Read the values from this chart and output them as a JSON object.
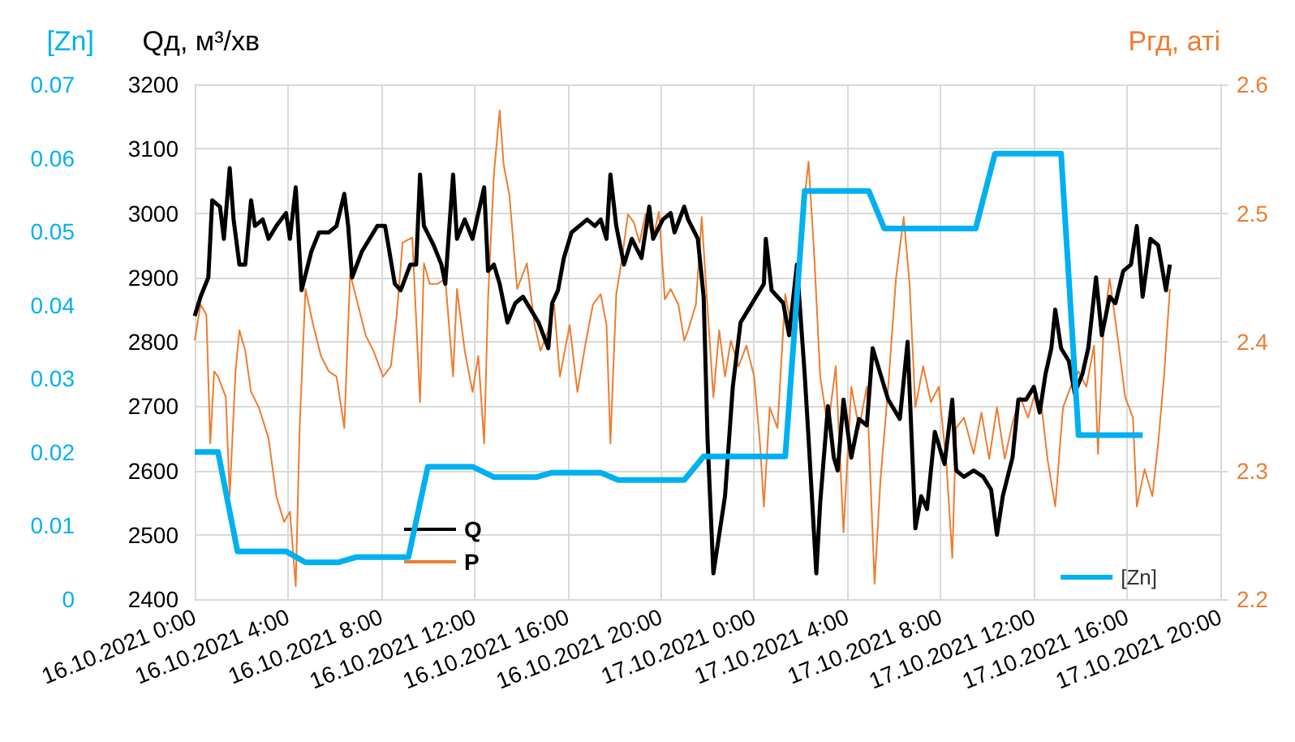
{
  "chart_data": {
    "type": "line",
    "ylabel": "Qд, м³/хв",
    "y2label": "Ргд, аті",
    "y3label": "[Zn]",
    "xlim": [
      "2021-10-16T00:00",
      "2021-10-17T20:00"
    ],
    "xticks": [
      {
        "value": "2021-10-16T00:00",
        "label": "16.10.2021 0:00"
      },
      {
        "value": "2021-10-16T04:00",
        "label": "16.10.2021 4:00"
      },
      {
        "value": "2021-10-16T08:00",
        "label": "16.10.2021 8:00"
      },
      {
        "value": "2021-10-16T12:00",
        "label": "16.10.2021 12:00"
      },
      {
        "value": "2021-10-16T16:00",
        "label": "16.10.2021 16:00"
      },
      {
        "value": "2021-10-16T20:00",
        "label": "16.10.2021 20:00"
      },
      {
        "value": "2021-10-17T00:00",
        "label": "17.10.2021 0:00"
      },
      {
        "value": "2021-10-17T04:00",
        "label": "17.10.2021 4:00"
      },
      {
        "value": "2021-10-17T08:00",
        "label": "17.10.2021 8:00"
      },
      {
        "value": "2021-10-17T12:00",
        "label": "17.10.2021 12:00"
      },
      {
        "value": "2021-10-17T16:00",
        "label": "17.10.2021 16:00"
      },
      {
        "value": "2021-10-17T20:00",
        "label": "17.10.2021 20:00"
      }
    ],
    "ylim": [
      2400,
      3200
    ],
    "yticks": [
      2400,
      2500,
      2600,
      2700,
      2800,
      2900,
      3000,
      3100,
      3200
    ],
    "y2lim": [
      2.2,
      2.6
    ],
    "y2ticks": [
      2.2,
      2.3,
      2.4,
      2.5,
      2.6
    ],
    "y3lim": [
      0,
      0.07
    ],
    "y3ticks": [
      0,
      0.01,
      0.02,
      0.03,
      0.04,
      0.05,
      0.06,
      0.07
    ],
    "grid": true,
    "legend": "bottom",
    "marker": "none",
    "line_style": "solid",
    "series": [
      {
        "name": "Q",
        "color": "#000000",
        "x": [
          "2021-10-16T00:00",
          "2021-10-16T00:15",
          "2021-10-16T00:35",
          "2021-10-16T00:45",
          "2021-10-16T01:05",
          "2021-10-16T01:15",
          "2021-10-16T01:30",
          "2021-10-16T01:40",
          "2021-10-16T01:55",
          "2021-10-16T02:10",
          "2021-10-16T02:25",
          "2021-10-16T02:35",
          "2021-10-16T02:55",
          "2021-10-16T03:10",
          "2021-10-16T03:30",
          "2021-10-16T03:55",
          "2021-10-16T04:05",
          "2021-10-16T04:20",
          "2021-10-16T04:35",
          "2021-10-16T05:00",
          "2021-10-16T05:20",
          "2021-10-16T05:45",
          "2021-10-16T06:05",
          "2021-10-16T06:25",
          "2021-10-16T06:35",
          "2021-10-16T06:45",
          "2021-10-16T07:10",
          "2021-10-16T07:30",
          "2021-10-16T07:50",
          "2021-10-16T08:10",
          "2021-10-16T08:35",
          "2021-10-16T08:50",
          "2021-10-16T09:15",
          "2021-10-16T09:30",
          "2021-10-16T09:40",
          "2021-10-16T09:50",
          "2021-10-16T10:15",
          "2021-10-16T10:35",
          "2021-10-16T10:45",
          "2021-10-16T11:05",
          "2021-10-16T11:15",
          "2021-10-16T11:35",
          "2021-10-16T11:55",
          "2021-10-16T12:25",
          "2021-10-16T12:35",
          "2021-10-16T12:50",
          "2021-10-16T13:05",
          "2021-10-16T13:25",
          "2021-10-16T13:45",
          "2021-10-16T14:05",
          "2021-10-16T14:25",
          "2021-10-16T14:45",
          "2021-10-16T15:10",
          "2021-10-16T15:20",
          "2021-10-16T15:35",
          "2021-10-16T15:50",
          "2021-10-16T16:10",
          "2021-10-16T16:30",
          "2021-10-16T16:50",
          "2021-10-16T17:10",
          "2021-10-16T17:25",
          "2021-10-16T17:40",
          "2021-10-16T17:50",
          "2021-10-16T18:05",
          "2021-10-16T18:25",
          "2021-10-16T18:45",
          "2021-10-16T19:10",
          "2021-10-16T19:30",
          "2021-10-16T19:40",
          "2021-10-16T20:05",
          "2021-10-16T20:25",
          "2021-10-16T20:35",
          "2021-10-16T21:00",
          "2021-10-16T21:10",
          "2021-10-16T21:35",
          "2021-10-16T21:50",
          "2021-10-16T22:00",
          "2021-10-16T22:15",
          "2021-10-16T22:30",
          "2021-10-16T22:45",
          "2021-10-16T23:05",
          "2021-10-16T23:25",
          "2021-10-16T23:45",
          "2021-10-17T00:05",
          "2021-10-17T00:25",
          "2021-10-17T00:30",
          "2021-10-17T00:45",
          "2021-10-17T01:15",
          "2021-10-17T01:30",
          "2021-10-17T01:50",
          "2021-10-17T02:10",
          "2021-10-17T02:20",
          "2021-10-17T02:40",
          "2021-10-17T02:50",
          "2021-10-17T03:10",
          "2021-10-17T03:25",
          "2021-10-17T03:35",
          "2021-10-17T03:50",
          "2021-10-17T04:10",
          "2021-10-17T04:30",
          "2021-10-17T04:50",
          "2021-10-17T05:05",
          "2021-10-17T05:25",
          "2021-10-17T05:45",
          "2021-10-17T06:15",
          "2021-10-17T06:35",
          "2021-10-17T06:55",
          "2021-10-17T07:10",
          "2021-10-17T07:25",
          "2021-10-17T07:45",
          "2021-10-17T08:10",
          "2021-10-17T08:30",
          "2021-10-17T08:40",
          "2021-10-17T09:00",
          "2021-10-17T09:25",
          "2021-10-17T09:50",
          "2021-10-17T10:10",
          "2021-10-17T10:25",
          "2021-10-17T10:40",
          "2021-10-17T11:05",
          "2021-10-17T11:20",
          "2021-10-17T11:40",
          "2021-10-17T12:00",
          "2021-10-17T12:15",
          "2021-10-17T12:30",
          "2021-10-17T12:45",
          "2021-10-17T12:55",
          "2021-10-17T13:10",
          "2021-10-17T13:30",
          "2021-10-17T13:45",
          "2021-10-17T14:05",
          "2021-10-17T14:20",
          "2021-10-17T14:40",
          "2021-10-17T14:55",
          "2021-10-17T15:15",
          "2021-10-17T15:30",
          "2021-10-17T15:50",
          "2021-10-17T16:10",
          "2021-10-17T16:25",
          "2021-10-17T16:40",
          "2021-10-17T17:00",
          "2021-10-17T17:20",
          "2021-10-17T17:40",
          "2021-10-17T17:50"
        ],
        "values": [
          2840,
          2870,
          2900,
          3020,
          3010,
          2960,
          3070,
          2990,
          2920,
          2920,
          3020,
          2980,
          2990,
          2960,
          2980,
          3000,
          2960,
          3040,
          2880,
          2940,
          2970,
          2970,
          2980,
          3030,
          2980,
          2900,
          2940,
          2960,
          2980,
          2980,
          2890,
          2880,
          2920,
          2920,
          3060,
          2980,
          2950,
          2920,
          2890,
          3060,
          2960,
          2990,
          2960,
          3040,
          2910,
          2920,
          2890,
          2830,
          2860,
          2870,
          2850,
          2830,
          2790,
          2860,
          2880,
          2930,
          2970,
          2980,
          2990,
          2980,
          2990,
          2960,
          3060,
          2980,
          2920,
          2960,
          2930,
          3010,
          2960,
          2990,
          3000,
          2970,
          3010,
          2990,
          2960,
          2870,
          2650,
          2440,
          2500,
          2560,
          2730,
          2830,
          2850,
          2870,
          2890,
          2960,
          2880,
          2860,
          2810,
          2920,
          2750,
          2650,
          2440,
          2550,
          2700,
          2620,
          2600,
          2710,
          2620,
          2680,
          2670,
          2790,
          2750,
          2710,
          2680,
          2800,
          2510,
          2560,
          2540,
          2660,
          2610,
          2710,
          2600,
          2590,
          2600,
          2590,
          2570,
          2500,
          2560,
          2620,
          2710,
          2710,
          2730,
          2690,
          2750,
          2790,
          2850,
          2790,
          2770,
          2720,
          2750,
          2790,
          2900,
          2810,
          2870,
          2860,
          2910,
          2920,
          2980,
          2870,
          2960,
          2950,
          2880,
          2920
        ]
      },
      {
        "name": "P",
        "color": "#ed7d31",
        "axis": "y2",
        "x": [
          "2021-10-16T00:00",
          "2021-10-16T00:15",
          "2021-10-16T00:30",
          "2021-10-16T00:40",
          "2021-10-16T00:50",
          "2021-10-16T01:00",
          "2021-10-16T01:20",
          "2021-10-16T01:30",
          "2021-10-16T01:45",
          "2021-10-16T01:55",
          "2021-10-16T02:10",
          "2021-10-16T02:25",
          "2021-10-16T02:45",
          "2021-10-16T03:10",
          "2021-10-16T03:30",
          "2021-10-16T03:50",
          "2021-10-16T04:05",
          "2021-10-16T04:20",
          "2021-10-16T04:30",
          "2021-10-16T04:45",
          "2021-10-16T05:05",
          "2021-10-16T05:25",
          "2021-10-16T05:45",
          "2021-10-16T06:05",
          "2021-10-16T06:25",
          "2021-10-16T06:40",
          "2021-10-16T07:00",
          "2021-10-16T07:20",
          "2021-10-16T07:40",
          "2021-10-16T08:05",
          "2021-10-16T08:25",
          "2021-10-16T08:40",
          "2021-10-16T08:55",
          "2021-10-16T09:20",
          "2021-10-16T09:40",
          "2021-10-16T09:50",
          "2021-10-16T10:05",
          "2021-10-16T10:25",
          "2021-10-16T10:45",
          "2021-10-16T11:05",
          "2021-10-16T11:15",
          "2021-10-16T11:35",
          "2021-10-16T11:55",
          "2021-10-16T12:10",
          "2021-10-16T12:25",
          "2021-10-16T12:35",
          "2021-10-16T12:50",
          "2021-10-16T13:05",
          "2021-10-16T13:15",
          "2021-10-16T13:30",
          "2021-10-16T13:50",
          "2021-10-16T14:15",
          "2021-10-16T14:35",
          "2021-10-16T14:50",
          "2021-10-16T15:10",
          "2021-10-16T15:25",
          "2021-10-16T15:40",
          "2021-10-16T16:05",
          "2021-10-16T16:25",
          "2021-10-16T16:45",
          "2021-10-16T17:05",
          "2021-10-16T17:25",
          "2021-10-16T17:40",
          "2021-10-16T17:50",
          "2021-10-16T18:05",
          "2021-10-16T18:20",
          "2021-10-16T18:35",
          "2021-10-16T18:50",
          "2021-10-16T19:05",
          "2021-10-16T19:20",
          "2021-10-16T19:40",
          "2021-10-16T19:55",
          "2021-10-16T20:10",
          "2021-10-16T20:25",
          "2021-10-16T20:45",
          "2021-10-16T21:00",
          "2021-10-16T21:10",
          "2021-10-16T21:30",
          "2021-10-16T21:45",
          "2021-10-16T21:55",
          "2021-10-16T22:15",
          "2021-10-16T22:30",
          "2021-10-16T22:45",
          "2021-10-16T23:00",
          "2021-10-16T23:20",
          "2021-10-16T23:40",
          "2021-10-17T00:00",
          "2021-10-17T00:15",
          "2021-10-17T00:25",
          "2021-10-17T00:40",
          "2021-10-17T01:00",
          "2021-10-17T01:20",
          "2021-10-17T01:40",
          "2021-10-17T02:00",
          "2021-10-17T02:20",
          "2021-10-17T02:35",
          "2021-10-17T02:50",
          "2021-10-17T03:10",
          "2021-10-17T03:30",
          "2021-10-17T03:50",
          "2021-10-17T04:10",
          "2021-10-17T04:30",
          "2021-10-17T04:50",
          "2021-10-17T05:10",
          "2021-10-17T05:25",
          "2021-10-17T05:45",
          "2021-10-17T06:05",
          "2021-10-17T06:25",
          "2021-10-17T06:40",
          "2021-10-17T06:55",
          "2021-10-17T07:15",
          "2021-10-17T07:35",
          "2021-10-17T07:55",
          "2021-10-17T08:15",
          "2021-10-17T08:30",
          "2021-10-17T08:40",
          "2021-10-17T09:00",
          "2021-10-17T09:25",
          "2021-10-17T09:45",
          "2021-10-17T10:05",
          "2021-10-17T10:25",
          "2021-10-17T10:45",
          "2021-10-17T11:05",
          "2021-10-17T11:25",
          "2021-10-17T11:45",
          "2021-10-17T12:00",
          "2021-10-17T12:20",
          "2021-10-17T12:35",
          "2021-10-17T12:55",
          "2021-10-17T13:15",
          "2021-10-17T13:35",
          "2021-10-17T13:55",
          "2021-10-17T14:15",
          "2021-10-17T14:35",
          "2021-10-17T14:45",
          "2021-10-17T15:00",
          "2021-10-17T15:15",
          "2021-10-17T15:35",
          "2021-10-17T15:55",
          "2021-10-17T16:15",
          "2021-10-17T16:25",
          "2021-10-17T16:45",
          "2021-10-17T17:05",
          "2021-10-17T17:20",
          "2021-10-17T17:35",
          "2021-10-17T17:50"
        ],
        "values": [
          2.401,
          2.429,
          2.421,
          2.321,
          2.377,
          2.373,
          2.357,
          2.28,
          2.377,
          2.409,
          2.393,
          2.361,
          2.349,
          2.325,
          2.28,
          2.26,
          2.268,
          2.21,
          2.333,
          2.441,
          2.413,
          2.389,
          2.377,
          2.373,
          2.333,
          2.453,
          2.429,
          2.405,
          2.393,
          2.373,
          2.381,
          2.421,
          2.477,
          2.481,
          2.353,
          2.461,
          2.445,
          2.445,
          2.449,
          2.373,
          2.441,
          2.393,
          2.361,
          2.389,
          2.321,
          2.433,
          2.53,
          2.58,
          2.538,
          2.514,
          2.441,
          2.461,
          2.413,
          2.393,
          2.409,
          2.429,
          2.373,
          2.413,
          2.361,
          2.397,
          2.429,
          2.437,
          2.413,
          2.321,
          2.437,
          2.465,
          2.499,
          2.493,
          2.477,
          2.499,
          2.481,
          2.501,
          2.433,
          2.441,
          2.429,
          2.401,
          2.409,
          2.429,
          2.497,
          2.449,
          2.357,
          2.409,
          2.373,
          2.401,
          2.381,
          2.397,
          2.373,
          2.321,
          2.272,
          2.349,
          2.333,
          2.437,
          2.405,
          2.485,
          2.54,
          2.465,
          2.373,
          2.333,
          2.381,
          2.252,
          2.365,
          2.333,
          2.365,
          2.212,
          2.292,
          2.365,
          2.449,
          2.497,
          2.445,
          2.349,
          2.381,
          2.353,
          2.365,
          2.305,
          2.232,
          2.333,
          2.341,
          2.313,
          2.345,
          2.309,
          2.349,
          2.309,
          2.337,
          2.357,
          2.341,
          2.357,
          2.349,
          2.309,
          2.272,
          2.349,
          2.365,
          2.377,
          2.365,
          2.397,
          2.313,
          2.413,
          2.449,
          2.405,
          2.357,
          2.341,
          2.272,
          2.301,
          2.28,
          2.321,
          2.373,
          2.441
        ]
      },
      {
        "name": "[Zn]",
        "color": "#00b0f0",
        "axis": "y3",
        "x": [
          "2021-10-16T00:00",
          "2021-10-16T01:00",
          "2021-10-16T01:50",
          "2021-10-16T03:55",
          "2021-10-16T04:45",
          "2021-10-16T06:10",
          "2021-10-16T06:55",
          "2021-10-16T09:10",
          "2021-10-16T10:00",
          "2021-10-16T11:55",
          "2021-10-16T12:50",
          "2021-10-16T14:40",
          "2021-10-16T15:20",
          "2021-10-16T17:25",
          "2021-10-16T18:10",
          "2021-10-16T21:00",
          "2021-10-16T21:50",
          "2021-10-17T01:20",
          "2021-10-17T02:10",
          "2021-10-17T04:55",
          "2021-10-17T05:35",
          "2021-10-17T09:30",
          "2021-10-17T10:20",
          "2021-10-17T13:10",
          "2021-10-17T13:55",
          "2021-10-17T16:40"
        ],
        "values": [
          0.02,
          0.02,
          0.0065,
          0.0065,
          0.005,
          0.005,
          0.0057,
          0.0057,
          0.018,
          0.018,
          0.0166,
          0.0166,
          0.0172,
          0.0172,
          0.0162,
          0.0162,
          0.0194,
          0.0194,
          0.0555,
          0.0555,
          0.0504,
          0.0504,
          0.0606,
          0.0606,
          0.0223,
          0.0223
        ]
      }
    ]
  }
}
